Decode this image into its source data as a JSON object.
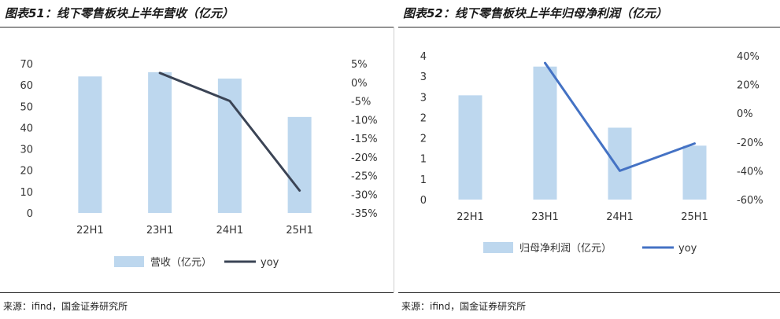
{
  "panels": [
    {
      "title": "图表51：线下零售板块上半年营收（亿元）",
      "source": "来源：ifind，国金证券研究所"
    },
    {
      "title": "图表52：线下零售板块上半年归母净利润（亿元）",
      "source": "来源：ifind，国金证券研究所"
    }
  ],
  "chart_data": [
    {
      "type": "bar",
      "title": "",
      "categories": [
        "22H1",
        "23H1",
        "24H1",
        "25H1"
      ],
      "series": [
        {
          "name": "营收（亿元）",
          "type": "bar",
          "axis": "left",
          "values": [
            64,
            66,
            63,
            45
          ],
          "color": "#bdd7ee"
        },
        {
          "name": "yoy",
          "type": "line",
          "axis": "right",
          "values": [
            null,
            2.5,
            -5,
            -29
          ],
          "color": "#3b4455"
        }
      ],
      "ylim": [
        0,
        70
      ],
      "yticks": [
        "0",
        "10",
        "20",
        "30",
        "40",
        "50",
        "60",
        "70"
      ],
      "y2lim": [
        -35,
        5
      ],
      "y2ticks": [
        "5%",
        "0%",
        "-5%",
        "-10%",
        "-15%",
        "-20%",
        "-25%",
        "-30%",
        "-35%"
      ],
      "legend_position": "bottom",
      "grid": false
    },
    {
      "type": "bar",
      "title": "",
      "categories": [
        "22H1",
        "23H1",
        "24H1",
        "25H1"
      ],
      "series": [
        {
          "name": "归母净利润（亿元）",
          "type": "bar",
          "axis": "left",
          "values": [
            2.9,
            3.7,
            2.0,
            1.5
          ],
          "color": "#bdd7ee"
        },
        {
          "name": "yoy",
          "type": "line",
          "axis": "right",
          "values": [
            null,
            35,
            -40,
            -21
          ],
          "color": "#4472c4"
        }
      ],
      "ylim": [
        0,
        4
      ],
      "yticks": [
        "0",
        "1",
        "1",
        "2",
        "2",
        "3",
        "3",
        "4"
      ],
      "y2lim": [
        -60,
        40
      ],
      "y2ticks": [
        "40%",
        "20%",
        "0%",
        "-20%",
        "-40%",
        "-60%"
      ],
      "legend_position": "bottom",
      "grid": false
    }
  ]
}
